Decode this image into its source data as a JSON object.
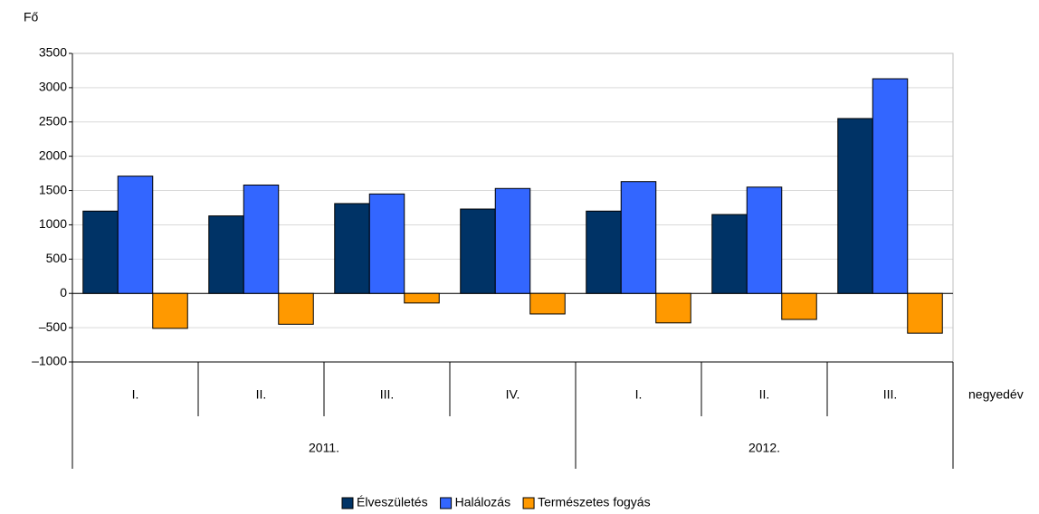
{
  "chart_data": {
    "type": "bar",
    "y_label": "Fő",
    "x_label": "negyedév",
    "categories": [
      "I.",
      "II.",
      "III.",
      "IV.",
      "I.",
      "II.",
      "III."
    ],
    "category_groups": [
      "2011.",
      "2011.",
      "2011.",
      "2011.",
      "2012.",
      "2012.",
      "2012."
    ],
    "series": [
      {
        "name": "Élveszületés",
        "color": "#003366",
        "values": [
          1200,
          1130,
          1310,
          1230,
          1200,
          1150,
          2550
        ]
      },
      {
        "name": "Halálozás",
        "color": "#3366ff",
        "values": [
          1710,
          1580,
          1450,
          1530,
          1630,
          1550,
          3130
        ]
      },
      {
        "name": "Természetes fogyás",
        "color": "#ff9900",
        "values": [
          -510,
          -450,
          -140,
          -300,
          -430,
          -380,
          -580
        ]
      }
    ],
    "ylim": [
      -1000,
      3500
    ],
    "yticks": [
      {
        "value": -1000,
        "label": "–1000"
      },
      {
        "value": -500,
        "label": "–500"
      },
      0,
      500,
      1000,
      1500,
      2000,
      2500,
      3000,
      3500
    ],
    "grid": true,
    "legend": "bottom"
  }
}
